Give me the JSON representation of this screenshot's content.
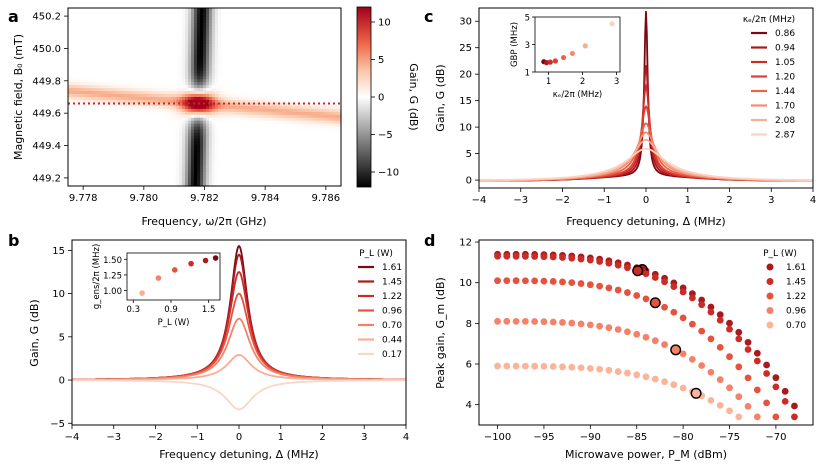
{
  "colors": {
    "curves": [
      "#7b0713",
      "#a71a1d",
      "#cb2c27",
      "#e5533f",
      "#f4826a",
      "#f9ad94",
      "#fdd5c4"
    ],
    "curves_d": [
      "#a71a1d",
      "#cb2c27",
      "#e5533f",
      "#f4826a",
      "#fbb39a"
    ],
    "map_dark": "#000000",
    "map_mid": "#ffffff",
    "map_red": "#a3001a",
    "dotted_line": "#c22a2a"
  },
  "panels": {
    "a": {
      "label": "a",
      "xlabel": "Frequency, ω/2π (GHz)",
      "ylabel": "Magnetic field, B₀ (mT)",
      "colorbar_label": "Gain, G (dB)"
    },
    "b": {
      "label": "b",
      "xlabel": "Frequency detuning, Δ (MHz)",
      "ylabel": "Gain, G (dB)",
      "legend_title": "P_L (W)",
      "inset_xlabel": "P_L (W)",
      "inset_ylabel": "g_ens/2π (MHz)"
    },
    "c": {
      "label": "c",
      "xlabel": "Frequency detuning, Δ (MHz)",
      "ylabel": "Gain, G (dB)",
      "legend_title": "κₑ/2π (MHz)",
      "inset_xlabel": "κₑ/2π (MHz)",
      "inset_ylabel": "GBP (MHz)"
    },
    "d": {
      "label": "d",
      "xlabel": "Microwave power, P_M (dBm)",
      "ylabel": "Peak gain, G_m (dB)",
      "legend_title": "P_L (W)"
    }
  },
  "chart_data": [
    {
      "id": "a",
      "type": "heatmap",
      "title": "",
      "xlabel": "Frequency, ω/2π (GHz)",
      "ylabel": "Magnetic field, B₀ (mT)",
      "xlim": [
        9.7775,
        9.7865
      ],
      "ylim": [
        449.15,
        450.25
      ],
      "xticks": [
        9.778,
        9.78,
        9.782,
        9.784,
        9.786
      ],
      "xtick_labels": [
        "9.778",
        "9.780",
        "9.782",
        "9.784",
        "9.786"
      ],
      "yticks": [
        449.2,
        449.4,
        449.6,
        449.8,
        450.0,
        450.2
      ],
      "ytick_labels": [
        "449.2",
        "449.4",
        "449.6",
        "449.8",
        "450.0",
        "450.2"
      ],
      "colorbar": {
        "range": [
          -12,
          12
        ],
        "ticks": [
          10,
          5,
          0,
          -5,
          -10
        ],
        "tick_labels": [
          "10",
          "5",
          "0",
          "−5",
          "−10"
        ]
      },
      "resonance_center_GHz": 9.7818,
      "slope_GHz_per_mT": 0.0048,
      "spin_field_mT": 449.66,
      "max_gain_dB": 12,
      "min_gain_dB": -12,
      "dotted_line_field_mT": 449.66
    },
    {
      "id": "b",
      "type": "line",
      "xlabel": "Frequency detuning, Δ (MHz)",
      "ylabel": "Gain, G (dB)",
      "xlim": [
        -4,
        4
      ],
      "ylim": [
        -5.2,
        16.2
      ],
      "xticks": [
        -4,
        -3,
        -2,
        -1,
        0,
        1,
        2,
        3,
        4
      ],
      "xtick_labels": [
        "−4",
        "−3",
        "−2",
        "−1",
        "0",
        "1",
        "2",
        "3",
        "4"
      ],
      "yticks": [
        -5,
        0,
        5,
        10,
        15
      ],
      "ytick_labels": [
        "−5",
        "0",
        "5",
        "10",
        "15"
      ],
      "series": [
        {
          "name": "1.61",
          "peak_dB": 15.5,
          "hwhm_MHz": 0.25
        },
        {
          "name": "1.45",
          "peak_dB": 14.5,
          "hwhm_MHz": 0.26
        },
        {
          "name": "1.22",
          "peak_dB": 12.5,
          "hwhm_MHz": 0.28
        },
        {
          "name": "0.96",
          "peak_dB": 10.0,
          "hwhm_MHz": 0.3
        },
        {
          "name": "0.70",
          "peak_dB": 7.1,
          "hwhm_MHz": 0.33
        },
        {
          "name": "0.44",
          "peak_dB": 2.9,
          "hwhm_MHz": 0.36
        },
        {
          "name": "0.17",
          "peak_dB": -3.4,
          "hwhm_MHz": 0.4
        }
      ],
      "inset": {
        "type": "scatter",
        "xlabel": "P_L (W)",
        "ylabel": "g_ens/2π (MHz)",
        "xlim": [
          0.2,
          1.68
        ],
        "ylim": [
          0.85,
          1.6
        ],
        "xticks": [
          0.3,
          0.9,
          1.5
        ],
        "xtick_labels": [
          "0.3",
          "0.9",
          "1.5"
        ],
        "yticks": [
          1.0,
          1.25,
          1.5
        ],
        "ytick_labels": [
          "1.00",
          "1.25",
          "1.50"
        ],
        "x": [
          0.44,
          0.7,
          0.96,
          1.22,
          1.45,
          1.61
        ],
        "y": [
          0.96,
          1.2,
          1.33,
          1.43,
          1.48,
          1.52
        ]
      }
    },
    {
      "id": "c",
      "type": "line",
      "xlabel": "Frequency detuning, Δ (MHz)",
      "ylabel": "Gain, G (dB)",
      "xlim": [
        -4,
        4
      ],
      "ylim": [
        -1.5,
        32.5
      ],
      "xticks": [
        -4,
        -3,
        -2,
        -1,
        0,
        1,
        2,
        3,
        4
      ],
      "xtick_labels": [
        "−4",
        "−3",
        "−2",
        "−1",
        "0",
        "1",
        "2",
        "3",
        "4"
      ],
      "yticks": [
        0,
        5,
        10,
        15,
        20,
        25,
        30
      ],
      "ytick_labels": [
        "0",
        "5",
        "10",
        "15",
        "20",
        "25",
        "30"
      ],
      "series": [
        {
          "name": "0.86",
          "peak_dB": 31.2,
          "hwhm_MHz": 0.05
        },
        {
          "name": "0.94",
          "peak_dB": 21.0,
          "hwhm_MHz": 0.08
        },
        {
          "name": "1.05",
          "peak_dB": 17.0,
          "hwhm_MHz": 0.11
        },
        {
          "name": "1.20",
          "peak_dB": 13.2,
          "hwhm_MHz": 0.15
        },
        {
          "name": "1.44",
          "peak_dB": 10.0,
          "hwhm_MHz": 0.22
        },
        {
          "name": "1.70",
          "peak_dB": 8.3,
          "hwhm_MHz": 0.3
        },
        {
          "name": "2.08",
          "peak_dB": 6.9,
          "hwhm_MHz": 0.38
        },
        {
          "name": "2.87",
          "peak_dB": 5.2,
          "hwhm_MHz": 0.55
        }
      ],
      "inset": {
        "type": "scatter",
        "xlabel": "κₑ/2π (MHz)",
        "ylabel": "GBP (MHz)",
        "xlim": [
          0.6,
          3.1
        ],
        "ylim": [
          1,
          5
        ],
        "xticks": [
          1,
          2,
          3
        ],
        "xtick_labels": [
          "1",
          "2",
          "3"
        ],
        "yticks": [
          1,
          3,
          5
        ],
        "ytick_labels": [
          "1",
          "3",
          "5"
        ],
        "x": [
          0.86,
          0.94,
          1.05,
          1.2,
          1.44,
          1.7,
          2.08,
          2.87
        ],
        "y": [
          1.75,
          1.68,
          1.72,
          1.8,
          2.05,
          2.35,
          2.9,
          4.5
        ]
      }
    },
    {
      "id": "d",
      "type": "scatter",
      "xlabel": "Microwave power, P_M (dBm)",
      "ylabel": "Peak gain, G_m (dB)",
      "xlim": [
        -102,
        -66
      ],
      "ylim": [
        3.0,
        12.1
      ],
      "xticks": [
        -100,
        -95,
        -90,
        -85,
        -80,
        -75,
        -70
      ],
      "xtick_labels": [
        "−100",
        "−95",
        "−90",
        "−85",
        "−80",
        "−75",
        "−70"
      ],
      "yticks": [
        4,
        6,
        8,
        10,
        12
      ],
      "ytick_labels": [
        "4",
        "6",
        "8",
        "10",
        "12"
      ],
      "x_start": -100,
      "x_step": 1,
      "series": [
        {
          "name": "1.61",
          "G0": 11.4,
          "x_end": -67.3,
          "highlight_x": -84.4
        },
        {
          "name": "1.45",
          "G0": 11.3,
          "x_end": -68.0,
          "highlight_x": -84.9
        },
        {
          "name": "1.22",
          "G0": 10.1,
          "x_end": -70.0,
          "highlight_x": -83.0
        },
        {
          "name": "0.96",
          "G0": 8.1,
          "x_end": -72.0,
          "highlight_x": -80.8
        },
        {
          "name": "0.70",
          "G0": 5.9,
          "x_end": -74.0,
          "highlight_x": -78.6
        }
      ],
      "end_gain_dB": 3.4
    }
  ]
}
